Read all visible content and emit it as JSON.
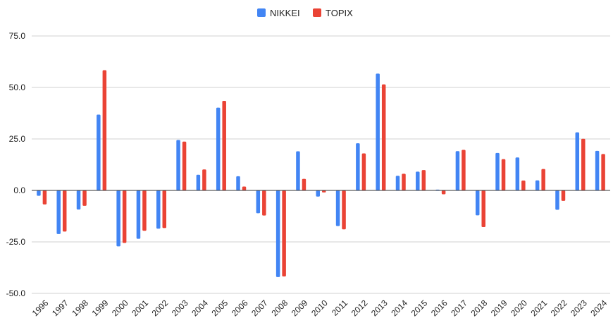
{
  "chart_data": {
    "type": "bar",
    "title": "",
    "xlabel": "",
    "ylabel": "",
    "ylim": [
      -50,
      75
    ],
    "yticks": [
      "75.0",
      "50.0",
      "25.0",
      "0.0",
      "-25.0",
      "-50.0"
    ],
    "grid": true,
    "legend_position": "top-center",
    "categories": [
      "1996",
      "1997",
      "1998",
      "1999",
      "2000",
      "2001",
      "2002",
      "2003",
      "2004",
      "2005",
      "2006",
      "2007",
      "2008",
      "2009",
      "2010",
      "2011",
      "2012",
      "2013",
      "2014",
      "2015",
      "2016",
      "2017",
      "2018",
      "2019",
      "2020",
      "2021",
      "2022",
      "2023",
      "2024"
    ],
    "series": [
      {
        "name": "NIKKEI",
        "color": "#4285f4",
        "values": [
          -2.6,
          -21.2,
          -9.3,
          36.8,
          -27.2,
          -23.5,
          -18.6,
          24.5,
          7.6,
          40.2,
          6.9,
          -11.1,
          -42.1,
          19.0,
          -3.0,
          -17.3,
          22.9,
          56.7,
          7.1,
          9.1,
          0.4,
          19.1,
          -12.1,
          18.2,
          16.0,
          4.9,
          -9.4,
          28.2,
          19.2
        ]
      },
      {
        "name": "TOPIX",
        "color": "#ea4335",
        "values": [
          -6.8,
          -20.0,
          -7.5,
          58.4,
          -25.5,
          -19.6,
          -18.3,
          23.7,
          10.2,
          43.5,
          1.9,
          -12.2,
          -41.8,
          5.6,
          -1.0,
          -18.9,
          18.0,
          51.5,
          8.1,
          9.9,
          -1.9,
          19.7,
          -17.8,
          15.2,
          4.8,
          10.4,
          -5.1,
          25.1,
          17.7
        ]
      }
    ]
  }
}
